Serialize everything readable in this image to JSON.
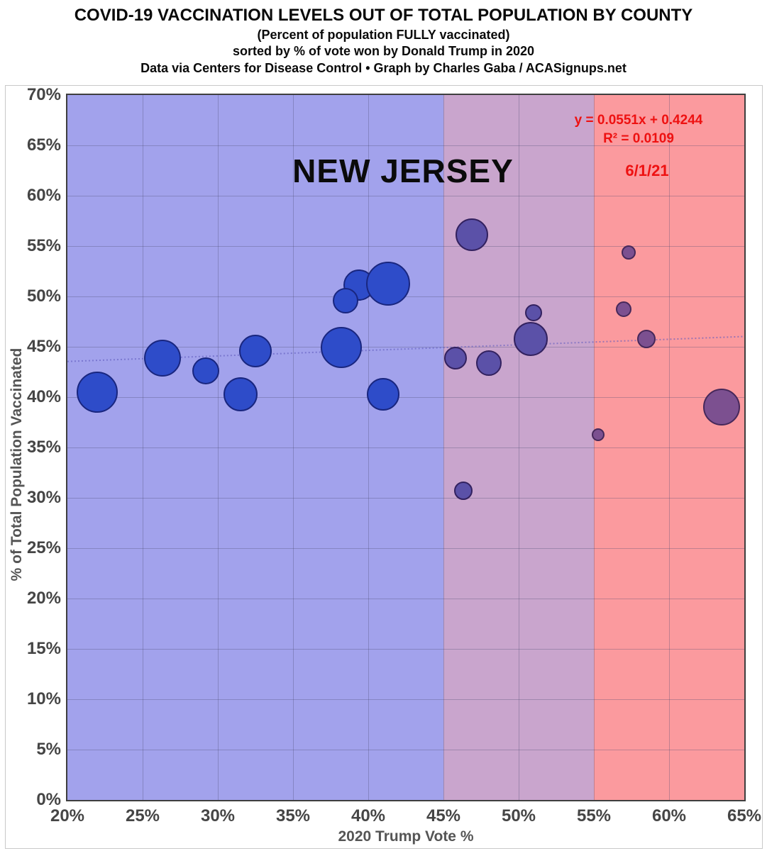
{
  "header": {
    "title": "COVID-19 VACCINATION LEVELS OUT OF TOTAL POPULATION BY COUNTY",
    "subtitle1": "(Percent of population FULLY vaccinated)",
    "subtitle2": "sorted by % of vote won by Donald Trump in 2020",
    "subtitle3": "Data via Centers for Disease Control • Graph by Charles Gaba / ACASignups.net"
  },
  "annotations": {
    "state_label": "NEW JERSEY",
    "equation": "y = 0.0551x + 0.4244",
    "r_squared": "R² = 0.0109",
    "date": "6/1/21"
  },
  "chart_data": {
    "type": "scatter",
    "title": "COVID-19 VACCINATION LEVELS OUT OF TOTAL POPULATION BY COUNTY (New Jersey)",
    "xlabel": "2020 Trump Vote %",
    "ylabel": "% of Total Population Vaccinated",
    "xlim": [
      20,
      65
    ],
    "ylim": [
      0,
      70
    ],
    "x_ticks": [
      20,
      25,
      30,
      35,
      40,
      45,
      50,
      55,
      60,
      65
    ],
    "y_ticks": [
      0,
      5,
      10,
      15,
      20,
      25,
      30,
      35,
      40,
      45,
      50,
      55,
      60,
      65,
      70
    ],
    "tick_suffix": "%",
    "grid": true,
    "bands": [
      {
        "zone": "blue",
        "x_range": [
          20,
          45
        ],
        "color": "#a2a2ec"
      },
      {
        "zone": "purple",
        "x_range": [
          45,
          55
        ],
        "color": "#c9a5cd"
      },
      {
        "zone": "red",
        "x_range": [
          55,
          65
        ],
        "color": "#fb9a9e"
      }
    ],
    "trendline": {
      "equation": "y = 0.0551x + 0.4244",
      "r2": 0.0109,
      "slope": 0.0551,
      "intercept": 0.4244,
      "style": "dotted"
    },
    "points": [
      {
        "x": 22.0,
        "y": 40.5,
        "r": 29,
        "zone": "blue"
      },
      {
        "x": 26.3,
        "y": 43.9,
        "r": 26,
        "zone": "blue"
      },
      {
        "x": 29.2,
        "y": 42.6,
        "r": 19,
        "zone": "blue"
      },
      {
        "x": 31.5,
        "y": 40.3,
        "r": 24,
        "zone": "blue"
      },
      {
        "x": 32.5,
        "y": 44.6,
        "r": 23,
        "zone": "blue"
      },
      {
        "x": 38.2,
        "y": 44.9,
        "r": 29,
        "zone": "blue"
      },
      {
        "x": 39.4,
        "y": 51.1,
        "r": 22,
        "zone": "blue"
      },
      {
        "x": 41.3,
        "y": 51.3,
        "r": 31,
        "zone": "blue"
      },
      {
        "x": 38.5,
        "y": 49.6,
        "r": 18,
        "zone": "blue"
      },
      {
        "x": 41.0,
        "y": 40.3,
        "r": 23,
        "zone": "blue"
      },
      {
        "x": 46.9,
        "y": 56.1,
        "r": 23,
        "zone": "purple"
      },
      {
        "x": 45.8,
        "y": 43.9,
        "r": 16,
        "zone": "purple"
      },
      {
        "x": 48.0,
        "y": 43.4,
        "r": 18,
        "zone": "purple"
      },
      {
        "x": 46.3,
        "y": 30.7,
        "r": 13,
        "zone": "purple"
      },
      {
        "x": 50.8,
        "y": 45.8,
        "r": 24,
        "zone": "purple"
      },
      {
        "x": 51.0,
        "y": 48.4,
        "r": 12,
        "zone": "purple"
      },
      {
        "x": 55.3,
        "y": 36.3,
        "r": 9,
        "zone": "red"
      },
      {
        "x": 57.3,
        "y": 54.4,
        "r": 10,
        "zone": "red"
      },
      {
        "x": 57.0,
        "y": 48.7,
        "r": 11,
        "zone": "red"
      },
      {
        "x": 58.5,
        "y": 45.8,
        "r": 13,
        "zone": "red"
      },
      {
        "x": 63.5,
        "y": 39.0,
        "r": 26,
        "zone": "red"
      }
    ]
  },
  "colors": {
    "band_blue": "#a2a2ec",
    "band_purple": "#c9a5cd",
    "band_red": "#fb9a9e",
    "bubble_blue_fill": "#2e4cc9",
    "bubble_blue_stroke": "#19267f",
    "bubble_purple_fill": "#5b51a8",
    "bubble_purple_stroke": "#32215f",
    "bubble_red_fill": "#7c5090",
    "bubble_red_stroke": "#46285a",
    "annotation_red": "#ee1111",
    "gridline": "rgba(70,70,110,0.32)",
    "trendline": "rgba(95,90,190,0.6)"
  }
}
